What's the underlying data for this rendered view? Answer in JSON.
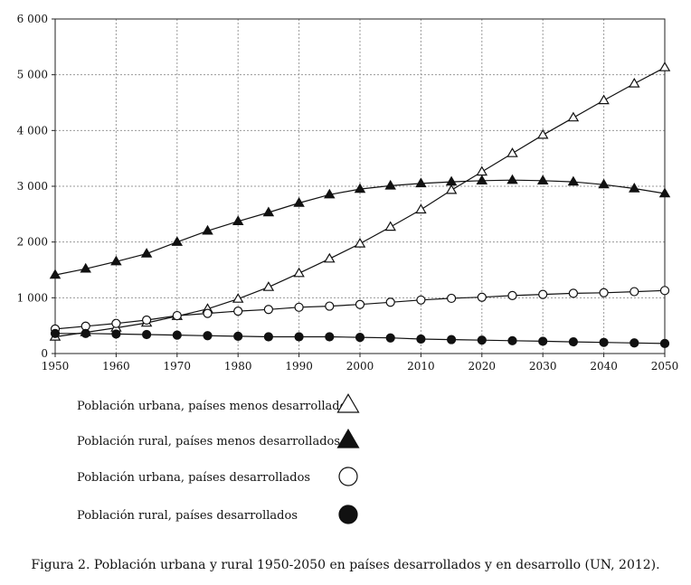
{
  "chart_data": {
    "type": "line",
    "title": "",
    "xlabel": "",
    "ylabel": "",
    "x": [
      1950,
      1955,
      1960,
      1965,
      1970,
      1975,
      1980,
      1985,
      1990,
      1995,
      2000,
      2005,
      2010,
      2015,
      2020,
      2025,
      2030,
      2035,
      2040,
      2045,
      2050
    ],
    "xlim": [
      1950,
      2050
    ],
    "ylim": [
      0,
      6000
    ],
    "grid": true,
    "x_ticks": [
      1950,
      1960,
      1970,
      1980,
      1990,
      2000,
      2010,
      2020,
      2030,
      2040,
      2050
    ],
    "x_tick_labels": [
      "1950",
      "1960",
      "1970",
      "1980",
      "1990",
      "2000",
      "2010",
      "2020",
      "2030",
      "2040",
      "2050"
    ],
    "y_ticks": [
      0,
      1000,
      2000,
      3000,
      4000,
      5000,
      6000
    ],
    "y_tick_labels": [
      "0",
      "1 000",
      "2 000",
      "3 000",
      "4 000",
      "5 000",
      "6 000"
    ],
    "series": [
      {
        "name": "Población urbana, países menos desarrollados",
        "marker": "triangle-open",
        "values": [
          300,
          380,
          460,
          550,
          670,
          800,
          980,
          1190,
          1440,
          1700,
          1970,
          2270,
          2580,
          2930,
          3260,
          3590,
          3920,
          4230,
          4540,
          4840,
          5130
        ]
      },
      {
        "name": "Población rural, países menos desarrollados",
        "marker": "triangle-filled",
        "values": [
          1410,
          1520,
          1650,
          1790,
          2000,
          2200,
          2370,
          2530,
          2700,
          2850,
          2950,
          3010,
          3050,
          3080,
          3100,
          3110,
          3100,
          3080,
          3030,
          2960,
          2870
        ]
      },
      {
        "name": "Población urbana, países desarrollados",
        "marker": "circle-open",
        "values": [
          440,
          490,
          540,
          600,
          680,
          720,
          760,
          790,
          830,
          850,
          880,
          920,
          960,
          990,
          1010,
          1040,
          1060,
          1080,
          1090,
          1110,
          1130
        ]
      },
      {
        "name": "Población rural, países desarrollados",
        "marker": "circle-filled",
        "values": [
          360,
          360,
          350,
          340,
          330,
          320,
          310,
          300,
          300,
          300,
          290,
          280,
          260,
          250,
          240,
          230,
          220,
          210,
          200,
          190,
          180
        ]
      }
    ]
  },
  "caption": "Figura 2. Población urbana y rural 1950-2050 en países desarrollados y en desarrollo (UN, 2012)."
}
